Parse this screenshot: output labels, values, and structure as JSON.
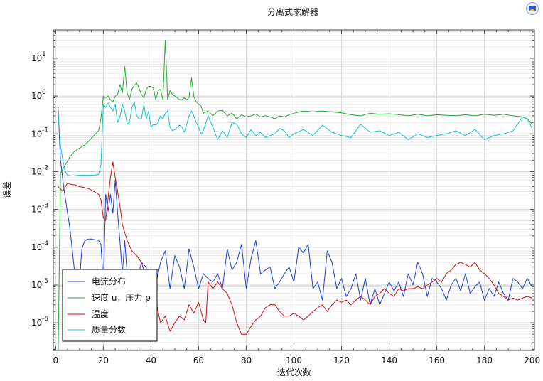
{
  "chart_data": {
    "type": "line",
    "title": "分离式求解器",
    "xlabel": "迭代次数",
    "ylabel": "误差",
    "xlim": [
      -1,
      201
    ],
    "ylog": true,
    "ylim_log10": [
      -6.73,
      1.75
    ],
    "xticks": [
      0,
      20,
      40,
      60,
      80,
      100,
      120,
      140,
      160,
      180,
      200
    ],
    "xtick_labels": [
      "0",
      "20",
      "40",
      "60",
      "80",
      "100",
      "120",
      "140",
      "160",
      "180",
      "200"
    ],
    "yticks": [
      {
        "exp": 1,
        "base": "10",
        "sup": "1"
      },
      {
        "exp": 0,
        "base": "10",
        "sup": "0"
      },
      {
        "exp": -1,
        "base": "10",
        "sup": "-1"
      },
      {
        "exp": -2,
        "base": "10",
        "sup": "-2"
      },
      {
        "exp": -3,
        "base": "10",
        "sup": "-3"
      },
      {
        "exp": -4,
        "base": "10",
        "sup": "-4"
      },
      {
        "exp": -5,
        "base": "10",
        "sup": "-5"
      },
      {
        "exp": -6,
        "base": "10",
        "sup": "-6"
      }
    ],
    "ytick_base": "10",
    "legend_position": "bottom-left",
    "series": [
      {
        "name": "电流分布",
        "color": "#1f3fcf",
        "x": [
          1,
          2,
          3,
          4,
          5,
          6,
          7,
          8,
          9,
          10,
          11,
          12,
          13,
          14,
          15,
          16,
          17,
          18,
          19,
          20,
          21,
          22,
          23,
          24,
          25,
          26,
          27,
          28,
          29,
          30,
          32,
          34,
          36,
          38,
          40,
          42,
          44,
          46,
          48,
          50,
          52,
          54,
          56,
          58,
          60,
          62,
          64,
          66,
          68,
          70,
          72,
          74,
          76,
          78,
          80,
          82,
          84,
          86,
          88,
          90,
          92,
          94,
          96,
          98,
          100,
          102,
          104,
          106,
          108,
          110,
          112,
          114,
          116,
          118,
          120,
          122,
          124,
          126,
          128,
          130,
          132,
          134,
          136,
          138,
          140,
          142,
          144,
          146,
          148,
          150,
          152,
          154,
          156,
          158,
          160,
          162,
          164,
          166,
          168,
          170,
          172,
          174,
          176,
          178,
          180,
          182,
          184,
          186,
          188,
          190,
          192,
          194,
          196,
          198,
          200
        ],
        "values": [
          0.5,
          0.02,
          0.006,
          0.002,
          0.0008,
          0.0003,
          8e-05,
          2e-05,
          1.2e-05,
          1.3e-05,
          9e-05,
          0.00014,
          0.00016,
          0.000165,
          0.000165,
          0.00016,
          0.000155,
          0.00015,
          0.00012,
          1e-05,
          0.0025,
          0.0009,
          0.0025,
          0.0008,
          0.006,
          0.0008,
          0.00014,
          2e-05,
          0.00015,
          2e-05,
          1.5e-05,
          1.2e-05,
          4e-05,
          3e-05,
          8e-06,
          1e-05,
          4e-05,
          8e-05,
          8e-06,
          6e-05,
          3e-05,
          8e-06,
          9e-05,
          3e-05,
          8e-06,
          2e-05,
          1.5e-05,
          1.2e-05,
          2e-05,
          8e-06,
          9e-05,
          2.5e-05,
          4e-05,
          0.00012,
          8e-06,
          5e-05,
          0.00015,
          2e-05,
          2.5e-05,
          3e-05,
          8e-06,
          1.2e-05,
          2e-05,
          3e-05,
          1.2e-05,
          0.0001,
          7e-05,
          0.00012,
          8e-06,
          1.2e-05,
          4e-06,
          8e-05,
          4e-05,
          8e-06,
          1.5e-05,
          5e-06,
          8e-06,
          2e-05,
          4e-06,
          1.5e-05,
          3e-06,
          8e-06,
          3e-06,
          6e-06,
          1.2e-05,
          7e-06,
          1.2e-05,
          5e-06,
          2e-05,
          1e-05,
          4e-05,
          2e-05,
          5e-06,
          1.5e-05,
          1.2e-05,
          8e-06,
          4e-06,
          1e-05,
          1.5e-05,
          7e-06,
          2e-05,
          6e-06,
          9e-06,
          1.2e-05,
          4e-06,
          8e-06,
          5e-06,
          1.2e-05,
          6e-06,
          4e-06,
          1.5e-05,
          1.2e-05,
          8e-06,
          1.5e-05,
          9e-06
        ]
      },
      {
        "name": "速度 u，压力 p",
        "color": "#22aa33",
        "x": [
          1,
          2,
          4,
          6,
          8,
          10,
          12,
          14,
          16,
          18,
          19,
          20,
          21,
          22,
          23,
          24,
          25,
          26,
          27,
          28,
          29,
          30,
          31,
          32,
          33,
          34,
          35,
          36,
          37,
          38,
          39,
          40,
          41,
          42,
          43,
          44,
          45,
          46,
          47,
          48,
          49,
          50,
          51,
          52,
          53,
          54,
          55,
          56,
          57,
          58,
          59,
          60,
          61,
          62,
          64,
          66,
          68,
          70,
          72,
          74,
          76,
          78,
          80,
          82,
          84,
          86,
          88,
          90,
          92,
          94,
          96,
          98,
          100,
          104,
          108,
          112,
          116,
          120,
          124,
          128,
          132,
          136,
          140,
          144,
          148,
          152,
          156,
          160,
          164,
          168,
          172,
          176,
          180,
          184,
          188,
          192,
          196,
          198,
          200
        ],
        "values": [
          1e-07,
          0.009,
          0.015,
          0.025,
          0.035,
          0.042,
          0.05,
          0.065,
          0.09,
          0.12,
          0.25,
          1.0,
          0.9,
          1.0,
          0.8,
          0.7,
          1.0,
          1.1,
          2.0,
          1.2,
          6.0,
          1.2,
          0.8,
          1.5,
          1.9,
          2.2,
          1.6,
          1.1,
          0.9,
          1.5,
          1.8,
          1.8,
          1.6,
          0.8,
          1.4,
          1.5,
          0.8,
          30.0,
          0.8,
          1.4,
          1.1,
          1.0,
          0.9,
          0.8,
          0.8,
          0.9,
          0.8,
          0.9,
          3.0,
          1.0,
          0.7,
          0.6,
          0.55,
          0.35,
          0.4,
          0.3,
          0.4,
          0.42,
          0.3,
          0.35,
          0.25,
          0.32,
          0.28,
          0.3,
          0.33,
          0.28,
          0.3,
          0.28,
          0.25,
          0.3,
          0.28,
          0.32,
          0.35,
          0.4,
          0.38,
          0.4,
          0.38,
          0.36,
          0.32,
          0.3,
          0.35,
          0.33,
          0.34,
          0.32,
          0.3,
          0.33,
          0.3,
          0.32,
          0.31,
          0.3,
          0.32,
          0.3,
          0.33,
          0.31,
          0.33,
          0.3,
          0.28,
          0.25,
          0.18
        ]
      },
      {
        "name": "温度",
        "color": "#cc1111",
        "x": [
          1,
          2,
          3,
          4,
          5,
          6,
          7,
          8,
          10,
          12,
          14,
          16,
          18,
          19,
          20,
          21,
          22,
          23,
          24,
          25,
          26,
          27,
          28,
          30,
          32,
          34,
          36,
          38,
          40,
          42,
          44,
          46,
          48,
          50,
          52,
          54,
          56,
          58,
          60,
          62,
          63,
          64,
          66,
          68,
          70,
          72,
          74,
          76,
          78,
          80,
          82,
          84,
          86,
          88,
          90,
          92,
          94,
          96,
          98,
          100,
          102,
          104,
          106,
          108,
          110,
          112,
          114,
          116,
          118,
          120,
          122,
          124,
          126,
          128,
          130,
          132,
          134,
          136,
          138,
          140,
          142,
          144,
          146,
          148,
          150,
          152,
          154,
          156,
          158,
          160,
          162,
          164,
          166,
          168,
          170,
          172,
          174,
          176,
          178,
          180,
          182,
          184,
          186,
          188,
          190,
          192,
          194,
          196,
          198,
          200
        ],
        "values": [
          0.004,
          0.0035,
          0.003,
          0.004,
          0.005,
          0.0047,
          0.0045,
          0.0045,
          0.004,
          0.0038,
          0.0035,
          0.003,
          0.0025,
          0.0018,
          0.0006,
          0.0005,
          0.002,
          0.007,
          0.018,
          0.007,
          0.003,
          0.0012,
          0.0004,
          0.00015,
          8e-05,
          6e-05,
          4e-05,
          1.5e-05,
          8e-06,
          4e-06,
          1e-06,
          1.5e-06,
          6e-07,
          1e-06,
          1.5e-06,
          1.2e-06,
          3e-06,
          1.8e-06,
          3.5e-06,
          1.2e-06,
          1e-06,
          1.2e-05,
          8e-06,
          1.2e-05,
          8e-06,
          6e-06,
          3e-06,
          1e-06,
          5e-07,
          5e-07,
          8e-07,
          1.2e-06,
          1.5e-06,
          2.5e-06,
          3e-06,
          3e-06,
          2e-06,
          1.5e-06,
          1.5e-06,
          1.8e-06,
          1.5e-06,
          1.2e-06,
          1.5e-06,
          2e-06,
          2.5e-06,
          3e-06,
          2e-06,
          3e-06,
          4e-06,
          3.5e-06,
          4e-06,
          3e-06,
          4e-06,
          5e-06,
          4e-06,
          3e-06,
          5e-06,
          6e-06,
          8e-06,
          6e-06,
          5e-06,
          8e-06,
          7e-06,
          8e-06,
          8e-06,
          9e-06,
          8e-06,
          1e-05,
          1.2e-05,
          1.5e-05,
          1.2e-05,
          2e-05,
          2.5e-05,
          3.5e-05,
          4e-05,
          3.5e-05,
          3e-05,
          4e-05,
          2.5e-05,
          2e-05,
          1.5e-05,
          1e-05,
          6e-06,
          5e-06,
          4e-06,
          4.5e-06,
          4e-06,
          4.5e-06,
          5e-06,
          4.5e-06
        ]
      },
      {
        "name": "质量分数",
        "color": "#11c4cc",
        "x": [
          1,
          2,
          3,
          4,
          5,
          6,
          7,
          8,
          10,
          12,
          14,
          16,
          18,
          19,
          20,
          21,
          22,
          23,
          24,
          25,
          26,
          27,
          28,
          29,
          30,
          31,
          32,
          33,
          34,
          35,
          36,
          37,
          38,
          39,
          40,
          41,
          42,
          43,
          44,
          45,
          46,
          47,
          48,
          49,
          50,
          51,
          52,
          53,
          54,
          55,
          56,
          57,
          58,
          59,
          60,
          61,
          62,
          64,
          66,
          68,
          70,
          72,
          74,
          76,
          78,
          80,
          82,
          84,
          86,
          88,
          90,
          92,
          94,
          96,
          98,
          100,
          104,
          108,
          112,
          116,
          120,
          124,
          128,
          132,
          136,
          140,
          144,
          148,
          152,
          156,
          160,
          164,
          168,
          172,
          176,
          180,
          184,
          188,
          192,
          196,
          198,
          200
        ],
        "values": [
          0.35,
          0.05,
          0.02,
          0.01,
          0.008,
          0.0078,
          0.0077,
          0.0078,
          0.008,
          0.0081,
          0.008,
          0.008,
          0.0085,
          0.015,
          0.6,
          0.5,
          0.65,
          0.5,
          0.4,
          0.6,
          0.2,
          0.28,
          0.6,
          0.4,
          0.18,
          0.2,
          0.5,
          0.7,
          0.3,
          0.25,
          0.25,
          0.6,
          0.25,
          0.4,
          0.15,
          0.18,
          0.17,
          0.2,
          0.3,
          0.25,
          0.35,
          0.4,
          0.15,
          0.12,
          0.13,
          0.15,
          0.17,
          0.15,
          0.11,
          0.18,
          0.3,
          0.4,
          0.3,
          0.2,
          0.15,
          0.1,
          0.12,
          0.3,
          0.15,
          0.07,
          0.12,
          0.08,
          0.2,
          0.18,
          0.1,
          0.08,
          0.13,
          0.09,
          0.11,
          0.08,
          0.09,
          0.1,
          0.14,
          0.12,
          0.08,
          0.1,
          0.13,
          0.09,
          0.17,
          0.11,
          0.09,
          0.08,
          0.18,
          0.11,
          0.12,
          0.09,
          0.11,
          0.07,
          0.1,
          0.08,
          0.09,
          0.1,
          0.12,
          0.09,
          0.13,
          0.07,
          0.09,
          0.1,
          0.12,
          0.28,
          0.25,
          0.14
        ]
      }
    ]
  }
}
